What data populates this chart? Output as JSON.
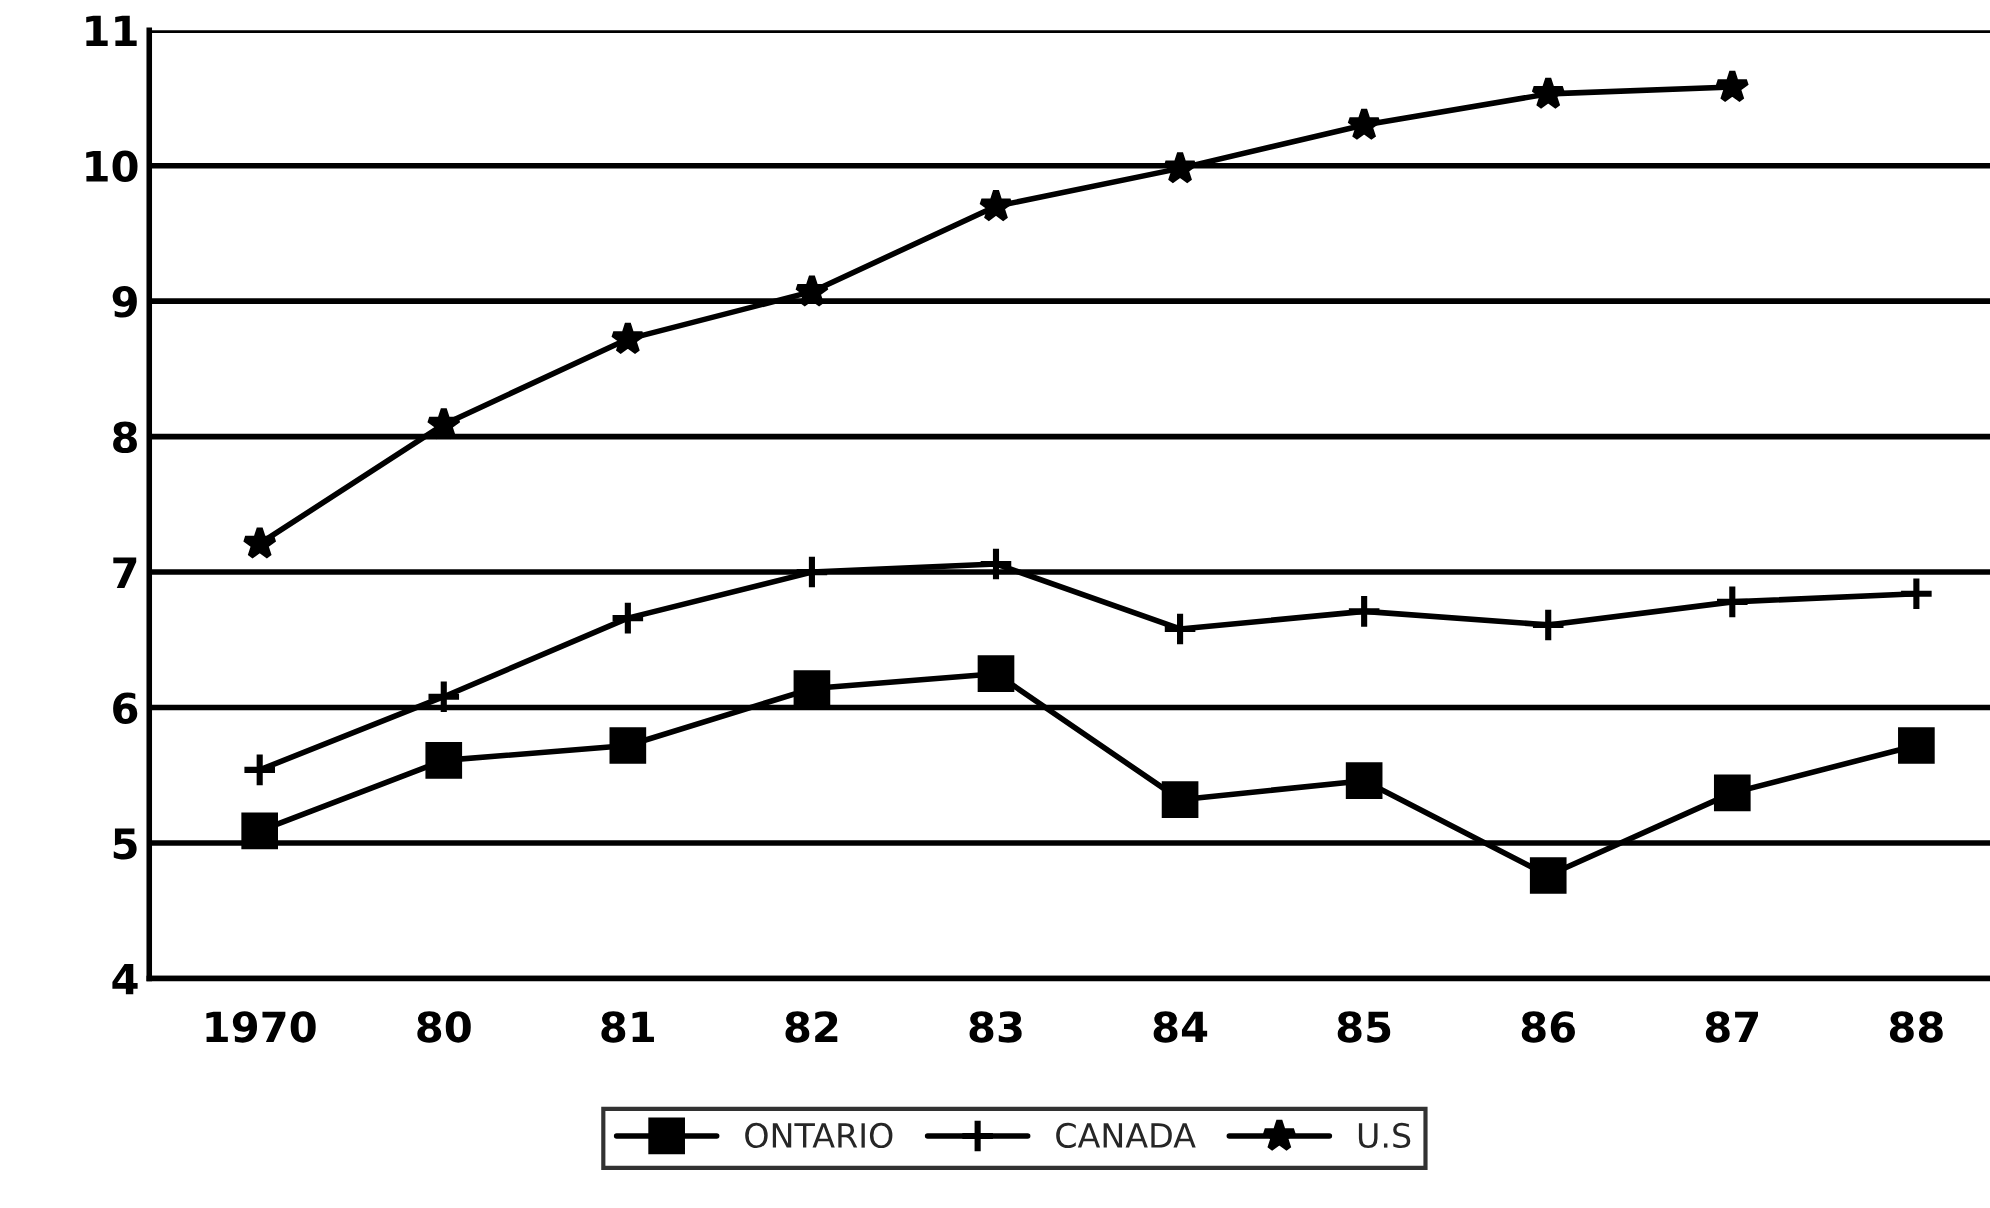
{
  "chart_data": {
    "type": "line",
    "categories": [
      "1970",
      "80",
      "81",
      "82",
      "83",
      "84",
      "85",
      "86",
      "87",
      "88"
    ],
    "series": [
      {
        "name": "ONTARIO",
        "color": "#000000",
        "marker": "square",
        "values": [
          5.09,
          5.61,
          5.72,
          6.14,
          6.25,
          5.32,
          5.46,
          4.76,
          5.37,
          5.72
        ]
      },
      {
        "name": "CANADA",
        "color": "#000000",
        "marker": "cross",
        "values": [
          5.54,
          6.08,
          6.66,
          7.0,
          7.06,
          6.58,
          6.71,
          6.61,
          6.78,
          6.84
        ]
      },
      {
        "name": "U.S",
        "color": "#000000",
        "marker": "star",
        "values": [
          7.21,
          8.09,
          8.72,
          9.07,
          9.7,
          9.98,
          10.3,
          10.53,
          10.58,
          null
        ]
      }
    ],
    "ylim": [
      4,
      11
    ],
    "yticks": [
      4,
      5,
      6,
      7,
      8,
      9,
      10,
      11
    ],
    "grid": "y",
    "legend": "bottom",
    "line_style": "solid"
  }
}
